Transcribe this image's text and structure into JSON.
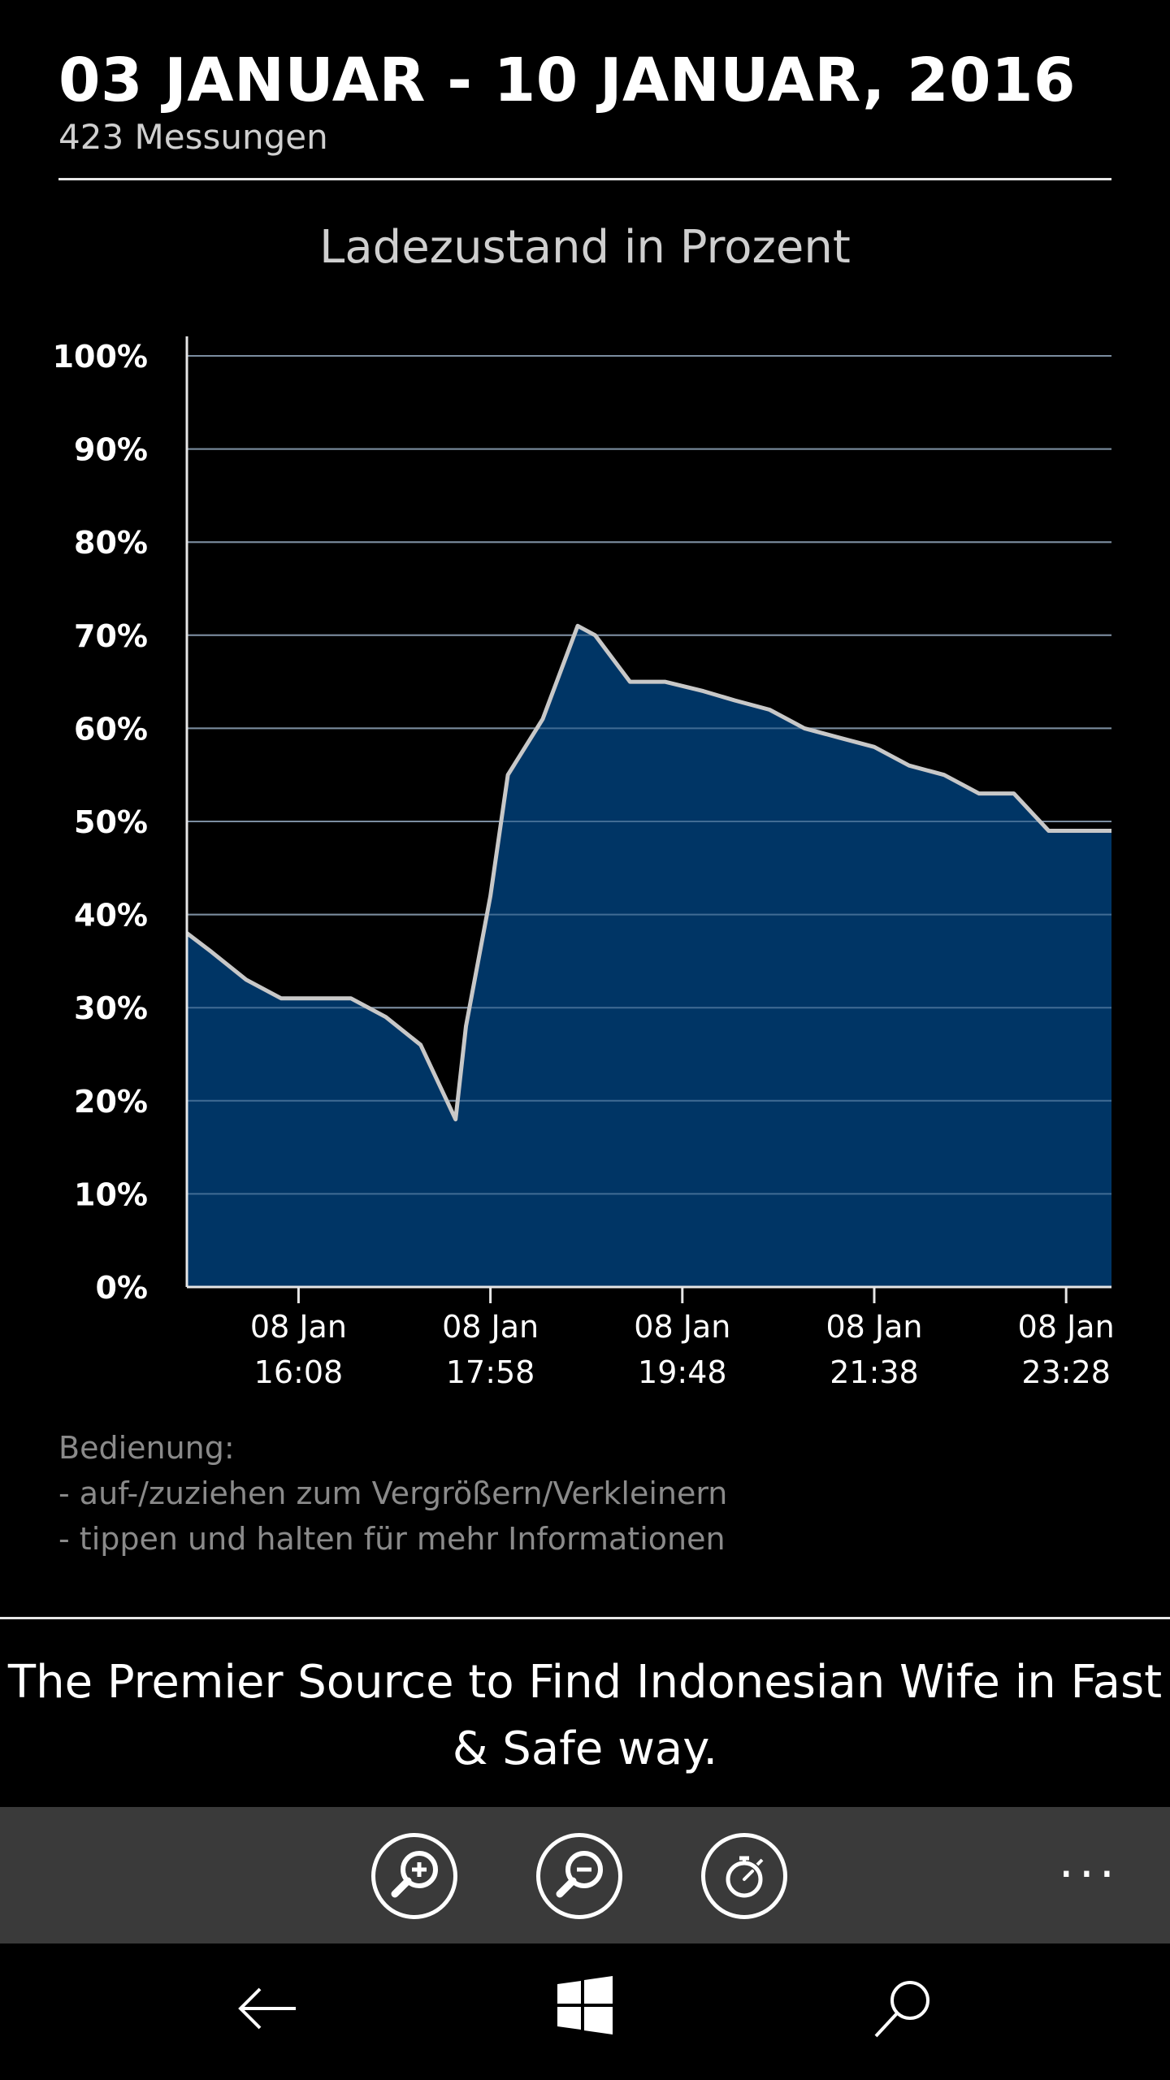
{
  "header": {
    "date_range": "03 JANUAR - 10 JANUAR, 2016",
    "measurements": "423 Messungen"
  },
  "chart_data": {
    "type": "area",
    "title": "Ladezustand in Prozent",
    "ylim": [
      0,
      100
    ],
    "y_ticks": [
      "0%",
      "10%",
      "20%",
      "30%",
      "40%",
      "50%",
      "60%",
      "70%",
      "80%",
      "90%",
      "100%"
    ],
    "x_ticks": [
      {
        "date": "08 Jan",
        "time": "16:08"
      },
      {
        "date": "08 Jan",
        "time": "17:58"
      },
      {
        "date": "08 Jan",
        "time": "19:48"
      },
      {
        "date": "08 Jan",
        "time": "21:38"
      },
      {
        "date": "08 Jan",
        "time": "23:28"
      }
    ],
    "xlim": [
      "08 Jan 15:04",
      "08 Jan 23:54"
    ],
    "grid": true,
    "series": [
      {
        "color": "#003a6e",
        "line_color": "#c8c8c8",
        "x": [
          "15:04",
          "15:18",
          "15:38",
          "15:58",
          "16:18",
          "16:38",
          "16:58",
          "17:18",
          "17:38",
          "17:44",
          "17:58",
          "18:08",
          "18:28",
          "18:48",
          "18:58",
          "19:18",
          "19:38",
          "20:00",
          "20:18",
          "20:38",
          "20:58",
          "21:18",
          "21:38",
          "21:58",
          "22:18",
          "22:38",
          "22:58",
          "23:18",
          "23:54"
        ],
        "y": [
          38,
          36,
          33,
          31,
          31,
          31,
          29,
          26,
          18,
          28,
          42,
          55,
          61,
          71,
          70,
          65,
          65,
          64,
          63,
          62,
          60,
          59,
          58,
          56,
          55,
          53,
          53,
          49,
          49
        ]
      }
    ]
  },
  "instructions": {
    "heading": "Bedienung:",
    "line1": "- auf-/zuziehen zum Vergrößern/Verkleinern",
    "line2": "- tippen und halten für mehr Informationen"
  },
  "ad": {
    "text": "The Premier Source to Find Indonesian Wife in Fast & Safe way."
  },
  "appbar": {
    "buttons": [
      "zoom-in-icon",
      "zoom-out-icon",
      "stopwatch-icon"
    ],
    "more_label": "···"
  },
  "navbar": {
    "buttons": [
      "back-arrow-icon",
      "windows-logo-icon",
      "search-icon"
    ]
  }
}
